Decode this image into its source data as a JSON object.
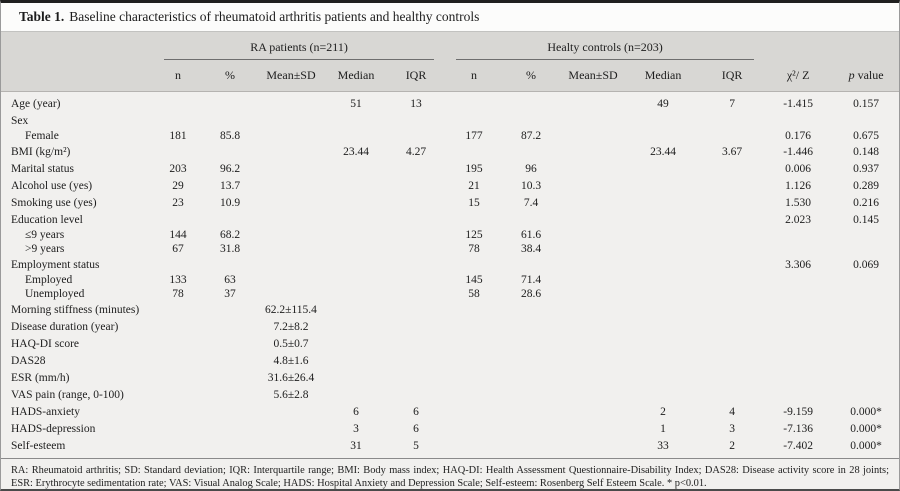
{
  "title": {
    "label": "Table 1.",
    "text": "Baseline characteristics of rheumatoid arthritis patients and healthy controls"
  },
  "header": {
    "ra_group": "RA patients (n=211)",
    "hc_group": "Healty controls (n=203)",
    "subcols": [
      "n",
      "%",
      "Mean±SD",
      "Median",
      "IQR"
    ],
    "chi_z": "χ²/ Z",
    "p_italic": "p",
    "p_rest": " value"
  },
  "table": {
    "col_keys": [
      "ra_n",
      "ra_pct",
      "ra_meansd",
      "ra_median",
      "ra_iqr",
      "hc_n",
      "hc_pct",
      "hc_meansd",
      "hc_median",
      "hc_iqr",
      "chi2_z",
      "p_value"
    ],
    "rows": [
      {
        "label": "Age (year)",
        "indent": false,
        "values": [
          "",
          "",
          "",
          "51",
          "13",
          "",
          "",
          "",
          "49",
          "7",
          "-1.415",
          "0.157"
        ]
      },
      {
        "label": "Sex",
        "indent": false,
        "values": [
          "",
          "",
          "",
          "",
          "",
          "",
          "",
          "",
          "",
          "",
          "",
          ""
        ]
      },
      {
        "label": "Female",
        "indent": true,
        "values": [
          "181",
          "85.8",
          "",
          "",
          "",
          "177",
          "87.2",
          "",
          "",
          "",
          "0.176",
          "0.675"
        ]
      },
      {
        "label": "BMI (kg/m²)",
        "indent": false,
        "values": [
          "",
          "",
          "",
          "23.44",
          "4.27",
          "",
          "",
          "",
          "23.44",
          "3.67",
          "-1.446",
          "0.148"
        ]
      },
      {
        "label": "Marital status",
        "indent": false,
        "values": [
          "203",
          "96.2",
          "",
          "",
          "",
          "195",
          "96",
          "",
          "",
          "",
          "0.006",
          "0.937"
        ]
      },
      {
        "label": "Alcohol use (yes)",
        "indent": false,
        "values": [
          "29",
          "13.7",
          "",
          "",
          "",
          "21",
          "10.3",
          "",
          "",
          "",
          "1.126",
          "0.289"
        ]
      },
      {
        "label": "Smoking use (yes)",
        "indent": false,
        "values": [
          "23",
          "10.9",
          "",
          "",
          "",
          "15",
          "7.4",
          "",
          "",
          "",
          "1.530",
          "0.216"
        ]
      },
      {
        "label": "Education level",
        "indent": false,
        "values": [
          "",
          "",
          "",
          "",
          "",
          "",
          "",
          "",
          "",
          "",
          "2.023",
          "0.145"
        ]
      },
      {
        "label": "≤9 years",
        "indent": true,
        "values": [
          "144",
          "68.2",
          "",
          "",
          "",
          "125",
          "61.6",
          "",
          "",
          "",
          "",
          ""
        ]
      },
      {
        "label": ">9 years",
        "indent": true,
        "values": [
          "67",
          "31.8",
          "",
          "",
          "",
          "78",
          "38.4",
          "",
          "",
          "",
          "",
          ""
        ]
      },
      {
        "label": "Employment status",
        "indent": false,
        "values": [
          "",
          "",
          "",
          "",
          "",
          "",
          "",
          "",
          "",
          "",
          "3.306",
          "0.069"
        ]
      },
      {
        "label": "Employed",
        "indent": true,
        "values": [
          "133",
          "63",
          "",
          "",
          "",
          "145",
          "71.4",
          "",
          "",
          "",
          "",
          ""
        ]
      },
      {
        "label": "Unemployed",
        "indent": true,
        "values": [
          "78",
          "37",
          "",
          "",
          "",
          "58",
          "28.6",
          "",
          "",
          "",
          "",
          ""
        ]
      },
      {
        "label": "Morning stiffness (minutes)",
        "indent": false,
        "values": [
          "",
          "",
          "62.2±115.4",
          "",
          "",
          "",
          "",
          "",
          "",
          "",
          "",
          ""
        ]
      },
      {
        "label": "Disease duration (year)",
        "indent": false,
        "values": [
          "",
          "",
          "7.2±8.2",
          "",
          "",
          "",
          "",
          "",
          "",
          "",
          "",
          ""
        ]
      },
      {
        "label": "HAQ-DI score",
        "indent": false,
        "values": [
          "",
          "",
          "0.5±0.7",
          "",
          "",
          "",
          "",
          "",
          "",
          "",
          "",
          ""
        ]
      },
      {
        "label": "DAS28",
        "indent": false,
        "values": [
          "",
          "",
          "4.8±1.6",
          "",
          "",
          "",
          "",
          "",
          "",
          "",
          "",
          ""
        ]
      },
      {
        "label": "ESR (mm/h)",
        "indent": false,
        "values": [
          "",
          "",
          "31.6±26.4",
          "",
          "",
          "",
          "",
          "",
          "",
          "",
          "",
          ""
        ]
      },
      {
        "label": "VAS pain (range, 0-100)",
        "indent": false,
        "values": [
          "",
          "",
          "5.6±2.8",
          "",
          "",
          "",
          "",
          "",
          "",
          "",
          "",
          ""
        ]
      },
      {
        "label": "HADS-anxiety",
        "indent": false,
        "values": [
          "",
          "",
          "",
          "6",
          "6",
          "",
          "",
          "",
          "2",
          "4",
          "-9.159",
          "0.000*"
        ]
      },
      {
        "label": "HADS-depression",
        "indent": false,
        "values": [
          "",
          "",
          "",
          "3",
          "6",
          "",
          "",
          "",
          "1",
          "3",
          "-7.136",
          "0.000*"
        ]
      },
      {
        "label": "Self-esteem",
        "indent": false,
        "values": [
          "",
          "",
          "",
          "31",
          "5",
          "",
          "",
          "",
          "33",
          "2",
          "-7.402",
          "0.000*"
        ]
      }
    ]
  },
  "footnote": "RA: Rheumatoid arthritis; SD: Standard deviation; IQR: Interquartile range; BMI: Body mass index; HAQ-DI: Health Assessment Questionnaire-Disability Index; DAS28: Disease activity score in 28 joints; ESR: Erythrocyte sedimentation rate; VAS: Visual Analog Scale; HADS: Hospital Anxiety and Depression Scale; Self-esteem: Rosenberg Self Esteem Scale. * p<0.01."
}
